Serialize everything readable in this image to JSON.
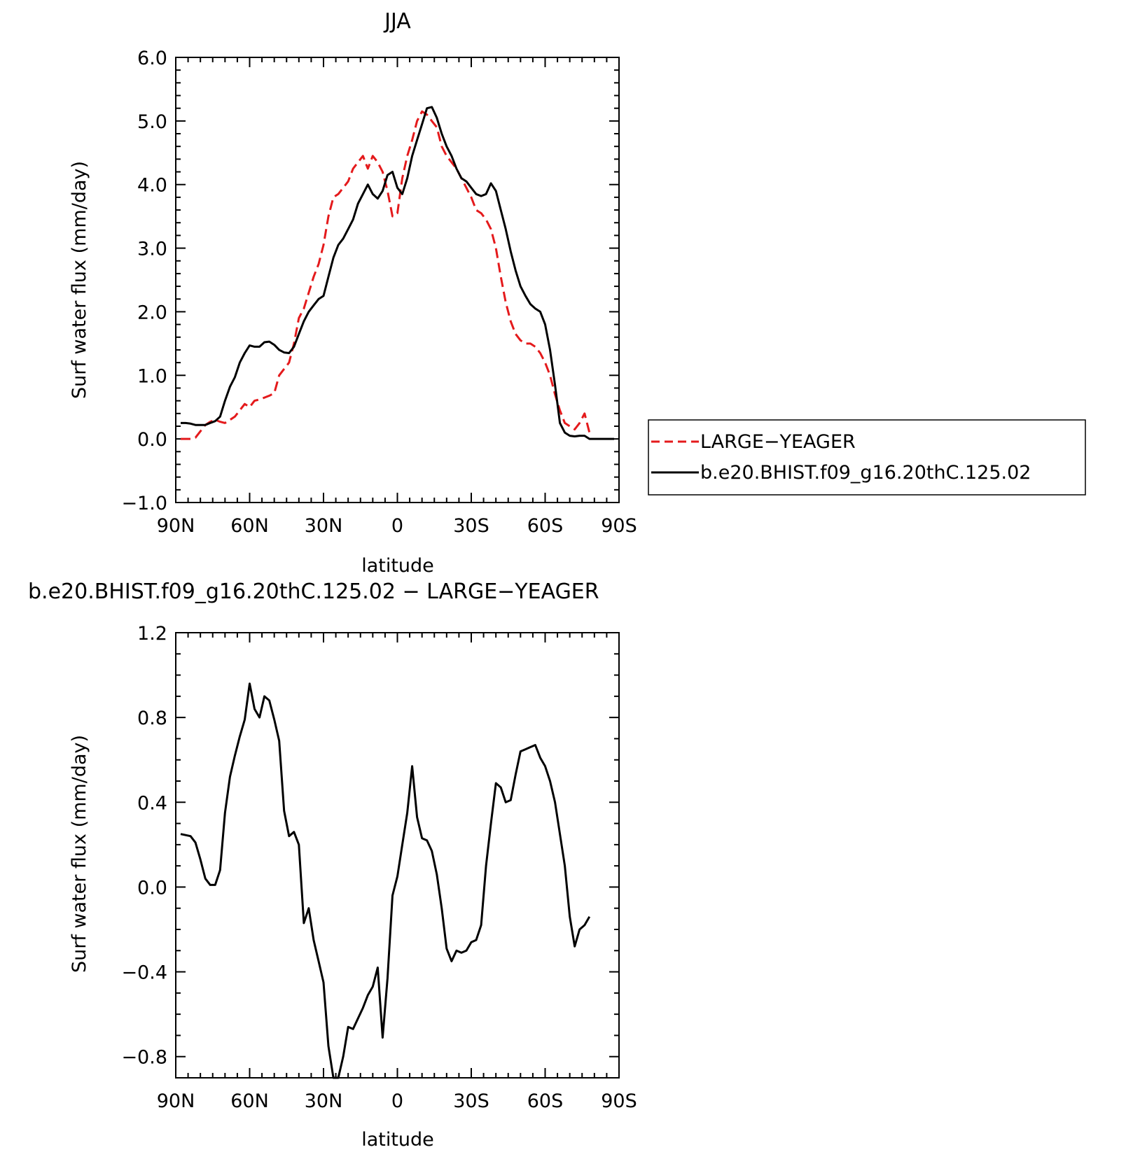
{
  "chart_data": [
    {
      "type": "line",
      "title": "JJA",
      "xlabel": "latitude",
      "ylabel": "Surf water flux (mm/day)",
      "xlim": [
        90,
        -90
      ],
      "ylim": [
        -1.0,
        6.0
      ],
      "xticks": [
        90,
        60,
        30,
        0,
        -30,
        -60,
        -90
      ],
      "xtick_labels": [
        "90N",
        "60N",
        "30N",
        "0",
        "30S",
        "60S",
        "90S"
      ],
      "yticks": [
        -1.0,
        0.0,
        1.0,
        2.0,
        3.0,
        4.0,
        5.0,
        6.0
      ],
      "ytick_labels": [
        "−1.0",
        "0.0",
        "1.0",
        "2.0",
        "3.0",
        "4.0",
        "5.0",
        "6.0"
      ],
      "legend_position": "outside-right",
      "series": [
        {
          "name": "LARGE−YEAGER",
          "color": "#e41a1c",
          "dash": "dashed",
          "x": [
            88,
            86,
            84,
            82,
            80,
            78,
            76,
            74,
            72,
            70,
            68,
            66,
            64,
            62,
            60,
            58,
            56,
            54,
            52,
            50,
            48,
            46,
            44,
            42,
            40,
            38,
            36,
            34,
            32,
            30,
            28,
            26,
            24,
            22,
            20,
            18,
            16,
            14,
            12,
            10,
            8,
            6,
            4,
            2,
            0,
            -2,
            -4,
            -6,
            -8,
            -10,
            -12,
            -14,
            -16,
            -18,
            -20,
            -22,
            -24,
            -26,
            -28,
            -30,
            -32,
            -34,
            -36,
            -38,
            -40,
            -42,
            -44,
            -46,
            -48,
            -50,
            -52,
            -54,
            -56,
            -58,
            -60,
            -62,
            -64,
            -66,
            -68,
            -70,
            -72,
            -74,
            -76,
            -78
          ],
          "y": [
            0.0,
            0.0,
            0.0,
            0.02,
            0.12,
            0.22,
            0.27,
            0.3,
            0.27,
            0.25,
            0.3,
            0.35,
            0.45,
            0.55,
            0.5,
            0.6,
            0.62,
            0.65,
            0.68,
            0.72,
            1.0,
            1.1,
            1.2,
            1.5,
            1.9,
            2.05,
            2.3,
            2.55,
            2.75,
            3.05,
            3.5,
            3.8,
            3.85,
            3.95,
            4.05,
            4.25,
            4.35,
            4.45,
            4.25,
            4.45,
            4.35,
            4.2,
            3.9,
            3.5,
            3.55,
            4.1,
            4.45,
            4.7,
            5.0,
            5.15,
            5.1,
            5.0,
            4.9,
            4.6,
            4.45,
            4.35,
            4.25,
            4.1,
            3.95,
            3.8,
            3.6,
            3.55,
            3.45,
            3.3,
            3.0,
            2.55,
            2.15,
            1.85,
            1.65,
            1.55,
            1.5,
            1.5,
            1.45,
            1.35,
            1.2,
            1.0,
            0.7,
            0.45,
            0.25,
            0.2,
            0.15,
            0.25,
            0.4,
            0.1
          ]
        },
        {
          "name": "b.e20.BHIST.f09_g16.20thC.125.02",
          "color": "#000000",
          "dash": "solid",
          "x": [
            88,
            86,
            84,
            82,
            80,
            78,
            76,
            74,
            72,
            70,
            68,
            66,
            64,
            62,
            60,
            58,
            56,
            54,
            52,
            50,
            48,
            46,
            44,
            42,
            40,
            38,
            36,
            34,
            32,
            30,
            28,
            26,
            24,
            22,
            20,
            18,
            16,
            14,
            12,
            10,
            8,
            6,
            4,
            2,
            0,
            -2,
            -4,
            -6,
            -8,
            -10,
            -12,
            -14,
            -16,
            -18,
            -20,
            -22,
            -24,
            -26,
            -28,
            -30,
            -32,
            -34,
            -36,
            -38,
            -40,
            -42,
            -44,
            -46,
            -48,
            -50,
            -52,
            -54,
            -56,
            -58,
            -60,
            -62,
            -64,
            -66,
            -68,
            -70,
            -72,
            -74,
            -76,
            -78,
            -80,
            -82,
            -84,
            -86,
            -88
          ],
          "y": [
            0.25,
            0.25,
            0.24,
            0.22,
            0.22,
            0.22,
            0.25,
            0.28,
            0.35,
            0.6,
            0.82,
            0.97,
            1.2,
            1.35,
            1.47,
            1.45,
            1.45,
            1.52,
            1.53,
            1.48,
            1.4,
            1.36,
            1.35,
            1.45,
            1.65,
            1.85,
            2.0,
            2.1,
            2.2,
            2.25,
            2.55,
            2.85,
            3.05,
            3.15,
            3.3,
            3.45,
            3.7,
            3.85,
            4.0,
            3.85,
            3.78,
            3.9,
            4.15,
            4.2,
            3.95,
            3.85,
            4.1,
            4.45,
            4.7,
            4.95,
            5.2,
            5.22,
            5.05,
            4.8,
            4.6,
            4.45,
            4.25,
            4.1,
            4.05,
            3.95,
            3.85,
            3.82,
            3.85,
            4.02,
            3.9,
            3.6,
            3.3,
            2.95,
            2.65,
            2.4,
            2.25,
            2.12,
            2.05,
            2.0,
            1.8,
            1.4,
            0.85,
            0.25,
            0.1,
            0.05,
            0.04,
            0.05,
            0.05,
            0.0,
            0.0,
            0.0,
            0.0,
            0.0,
            0.0
          ]
        }
      ]
    },
    {
      "type": "line",
      "title": "b.e20.BHIST.f09_g16.20thC.125.02 − LARGE−YEAGER",
      "xlabel": "latitude",
      "ylabel": "Surf water flux (mm/day)",
      "xlim": [
        90,
        -90
      ],
      "ylim": [
        -0.9,
        1.2
      ],
      "xticks": [
        90,
        60,
        30,
        0,
        -30,
        -60,
        -90
      ],
      "xtick_labels": [
        "90N",
        "60N",
        "30N",
        "0",
        "30S",
        "60S",
        "90S"
      ],
      "yticks": [
        -0.8,
        -0.4,
        0.0,
        0.4,
        0.8,
        1.2
      ],
      "ytick_labels": [
        "−0.8",
        "−0.4",
        "0.0",
        "0.4",
        "0.8",
        "1.2"
      ],
      "series": [
        {
          "color": "#000000",
          "dash": "solid",
          "x": [
            88,
            86,
            84,
            82,
            80,
            78,
            76,
            74,
            72,
            70,
            68,
            66,
            64,
            62,
            60,
            58,
            56,
            54,
            52,
            50,
            48,
            46,
            44,
            42,
            40,
            38,
            36,
            34,
            32,
            30,
            28,
            26,
            24,
            22,
            20,
            18,
            16,
            14,
            12,
            10,
            8,
            6,
            4,
            2,
            0,
            -2,
            -4,
            -6,
            -8,
            -10,
            -12,
            -14,
            -16,
            -18,
            -20,
            -22,
            -24,
            -26,
            -28,
            -30,
            -32,
            -34,
            -36,
            -38,
            -40,
            -42,
            -44,
            -46,
            -48,
            -50,
            -52,
            -54,
            -56,
            -58,
            -60,
            -62,
            -64,
            -66,
            -68,
            -70,
            -72,
            -74,
            -76,
            -78
          ],
          "y": [
            0.25,
            0.245,
            0.24,
            0.21,
            0.13,
            0.04,
            0.01,
            0.01,
            0.08,
            0.35,
            0.52,
            0.62,
            0.71,
            0.79,
            0.96,
            0.84,
            0.8,
            0.9,
            0.88,
            0.79,
            0.69,
            0.36,
            0.24,
            0.26,
            0.2,
            -0.17,
            -0.1,
            -0.25,
            -0.35,
            -0.45,
            -0.75,
            -0.9,
            -0.9,
            -0.8,
            -0.66,
            -0.67,
            -0.62,
            -0.57,
            -0.51,
            -0.47,
            -0.38,
            -0.71,
            -0.43,
            -0.04,
            0.05,
            0.2,
            0.35,
            0.57,
            0.33,
            0.23,
            0.22,
            0.17,
            0.06,
            -0.1,
            -0.29,
            -0.35,
            -0.3,
            -0.31,
            -0.3,
            -0.26,
            -0.25,
            -0.18,
            0.1,
            0.3,
            0.49,
            0.47,
            0.4,
            0.41,
            0.53,
            0.64,
            0.65,
            0.66,
            0.67,
            0.61,
            0.57,
            0.5,
            0.4,
            0.25,
            0.1,
            -0.14,
            -0.28,
            -0.2,
            -0.18,
            -0.14
          ]
        }
      ]
    }
  ]
}
